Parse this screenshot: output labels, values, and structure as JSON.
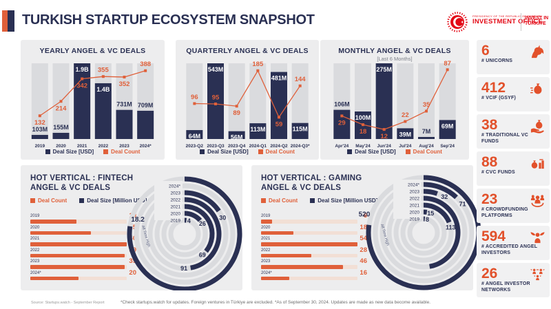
{
  "colors": {
    "navy": "#2A3053",
    "orange": "#E0603A",
    "orange_deep": "#E2512B",
    "panel": "#EDEDEE",
    "track": "#DADBDE",
    "hv_track": "#F2DFD5",
    "logo_red": "#E30A17"
  },
  "header": {
    "title": "TURKISH STARTUP ECOSYSTEM SNAPSHOT",
    "logo": {
      "ministry": "PRESIDENCY OF THE REPUBLIC OF TÜRKİYE",
      "office": "INVESTMENT OFFICE",
      "invest_line1": "INVEST IN",
      "invest_line2": "TÜRKİYE"
    }
  },
  "chart_data": [
    {
      "id": "yearly",
      "type": "bar",
      "title": "YEARLY ANGEL & VC DEALS",
      "categories": [
        "2019",
        "2020",
        "2021",
        "2022",
        "2023",
        "2024*"
      ],
      "series": [
        {
          "name": "Deal Size [USD]",
          "labels": [
            "103M",
            "155M",
            "1.9B",
            "1.4B",
            "731M",
            "709M"
          ],
          "values_musd": [
            103,
            155,
            1900,
            1400,
            731,
            709
          ]
        },
        {
          "name": "Deal Count",
          "values": [
            132,
            214,
            342,
            355,
            352,
            388
          ]
        }
      ],
      "legend": [
        "Deal Size [USD]",
        "Deal Count"
      ],
      "ylim_size_musd": [
        0,
        1900
      ],
      "ylim_count": [
        0,
        430
      ],
      "label_inside": [
        false,
        false,
        true,
        true,
        false,
        false
      ],
      "count_label_side": [
        "below",
        "below",
        "below",
        "above",
        "below",
        "above"
      ]
    },
    {
      "id": "quarterly",
      "type": "bar",
      "title": "QUARTERLY ANGEL & VC DEALS",
      "categories": [
        "2023-Q2",
        "2023-Q3",
        "2023-Q4",
        "2024-Q1",
        "2024-Q2",
        "2024-Q3*"
      ],
      "series": [
        {
          "name": "Deal Size [USD]",
          "labels": [
            "64M",
            "543M",
            "56M",
            "113M",
            "481M",
            "115M"
          ],
          "values_musd": [
            64,
            543,
            56,
            113,
            481,
            115
          ]
        },
        {
          "name": "Deal Count",
          "values": [
            96,
            95,
            89,
            185,
            59,
            144
          ]
        }
      ],
      "legend": [
        "Deal Size [USD]",
        "Deal Count"
      ],
      "ylim_size_musd": [
        0,
        543
      ],
      "ylim_count": [
        0,
        205
      ],
      "label_inside": [
        true,
        true,
        true,
        true,
        true,
        true
      ],
      "count_label_side": [
        "above",
        "above",
        "below",
        "above",
        "below",
        "above"
      ]
    },
    {
      "id": "monthly",
      "type": "bar",
      "title": "MONTHLY ANGEL & VC DEALS",
      "subtitle": "[Last 6 Months]",
      "categories": [
        "Apr'24",
        "May'24",
        "Jun'24",
        "Jul'24",
        "Aug'24",
        "Sep'24"
      ],
      "series": [
        {
          "name": "Deal Size [USD]",
          "labels": [
            "106M",
            "100M",
            "275M",
            "39M",
            "7M",
            "69M"
          ],
          "values_musd": [
            106,
            100,
            275,
            39,
            7,
            69
          ]
        },
        {
          "name": "Deal Count",
          "values": [
            29,
            18,
            12,
            22,
            35,
            87
          ]
        }
      ],
      "legend": [
        "Deal Size [USD]",
        "Deal Count"
      ],
      "ylim_size_musd": [
        0,
        275
      ],
      "ylim_count": [
        0,
        95
      ],
      "label_inside": [
        false,
        true,
        true,
        true,
        false,
        true
      ],
      "count_label_side": [
        "below",
        "below",
        "below",
        "above",
        "above",
        "above"
      ]
    },
    {
      "id": "fintech",
      "type": "hbar+radial",
      "title_line1": "HOT VERTICAL : FINTECH",
      "title_line2": "ANGEL & VC DEALS",
      "legend": [
        "Deal Count",
        "Deal Size [Million USD]"
      ],
      "years": [
        "2019",
        "2020",
        "2021",
        "2022",
        "2023",
        "2024*"
      ],
      "deal_count": [
        19,
        25,
        40,
        39,
        39,
        20
      ],
      "deal_size_musd": [
        4,
        26,
        69,
        91,
        30,
        null
      ],
      "size_label_visible": [
        true,
        true,
        true,
        true,
        true,
        false
      ],
      "arc_scale_max": 91,
      "all_time": {
        "label": "All Time High",
        "value": "18.2"
      },
      "all_time_sweep_deg": 278,
      "all_time_label_r": 71
    },
    {
      "id": "gaming",
      "type": "hbar+radial",
      "title_line1": "HOT VERTICAL : GAMING",
      "title_line2": "ANGEL & VC DEALS",
      "legend": [
        "Deal Count",
        "Deal Size [Million USD]"
      ],
      "years": [
        "2019",
        "2020",
        "2021",
        "2022",
        "2023",
        "2024*"
      ],
      "deal_count": [
        6,
        18,
        54,
        28,
        46,
        16
      ],
      "deal_size_musd": [
        8,
        15,
        113,
        null,
        32,
        71
      ],
      "size_label_visible": [
        true,
        true,
        true,
        false,
        true,
        true
      ],
      "arc_scale_max": 282,
      "unlabeled_arc": {
        "index": 3,
        "sweep_deg": 170
      },
      "all_time": {
        "label": "All Time High",
        "value": "520"
      },
      "all_time_sweep_deg": 278,
      "all_time_label_r": 90
    }
  ],
  "sidebar": {
    "items": [
      {
        "value": "6",
        "label": "# UNICORNS",
        "icon": "unicorn-icon"
      },
      {
        "value": "412",
        "label": "# VCIF (GSYF)",
        "icon": "money-bag-icon"
      },
      {
        "value": "38",
        "label": "# TRADITIONAL VC FUNDS",
        "icon": "hand-money-icon"
      },
      {
        "value": "88",
        "label": "# CVC FUNDS",
        "icon": "cvc-funds-icon"
      },
      {
        "value": "23",
        "label": "# CROWDFUNDING PLATFORMS",
        "icon": "crowdfunding-icon"
      },
      {
        "value": "594",
        "label": "# ACCREDITED ANGEL INVESTORS",
        "icon": "angel-investor-icon"
      },
      {
        "value": "26",
        "label": "# ANGEL INVESTOR NETWORKS",
        "icon": "angel-network-icon"
      }
    ]
  },
  "footer": {
    "source": "Source: Startups.watch - September Report",
    "note": "*Check startups.watch for updates. Foreign ventures in Türkiye are excluded. *As of September 30, 2024. Updates are made as new data become available."
  }
}
